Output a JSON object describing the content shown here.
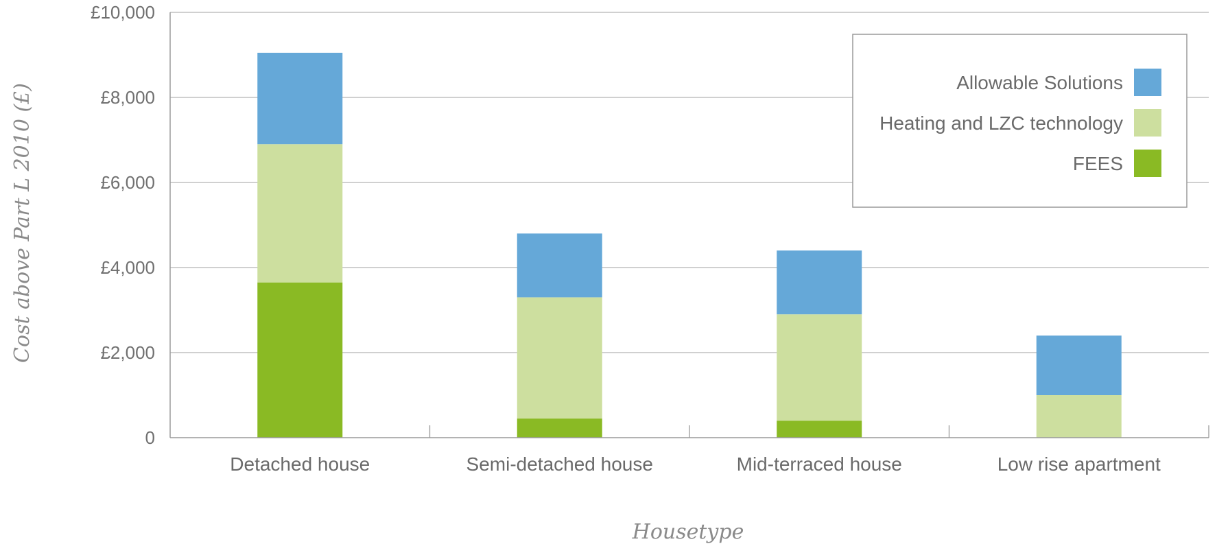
{
  "chart_data": {
    "type": "bar",
    "stacked": true,
    "title": "",
    "xlabel": "Housetype",
    "ylabel": "Cost above Part L 2010 (£)",
    "ylim": [
      0,
      10000
    ],
    "yticks": [
      0,
      2000,
      4000,
      6000,
      8000,
      10000
    ],
    "ytick_labels": [
      "0",
      "£2,000",
      "£4,000",
      "£6,000",
      "£8,000",
      "£10,000"
    ],
    "grid": true,
    "legend_position": "top-right",
    "categories": [
      "Detached house",
      "Semi-detached house",
      "Mid-terraced house",
      "Low rise apartment"
    ],
    "series": [
      {
        "name": "FEES",
        "color": "#8aba24",
        "values": [
          3650,
          450,
          400,
          0
        ]
      },
      {
        "name": "Heating and LZC technology",
        "color": "#cddf9f",
        "values": [
          3250,
          2850,
          2500,
          1000
        ]
      },
      {
        "name": "Allowable Solutions",
        "color": "#65a8d8",
        "values": [
          2150,
          1500,
          1500,
          1400
        ]
      }
    ],
    "legend_order": [
      "Allowable Solutions",
      "Heating and LZC technology",
      "FEES"
    ]
  }
}
